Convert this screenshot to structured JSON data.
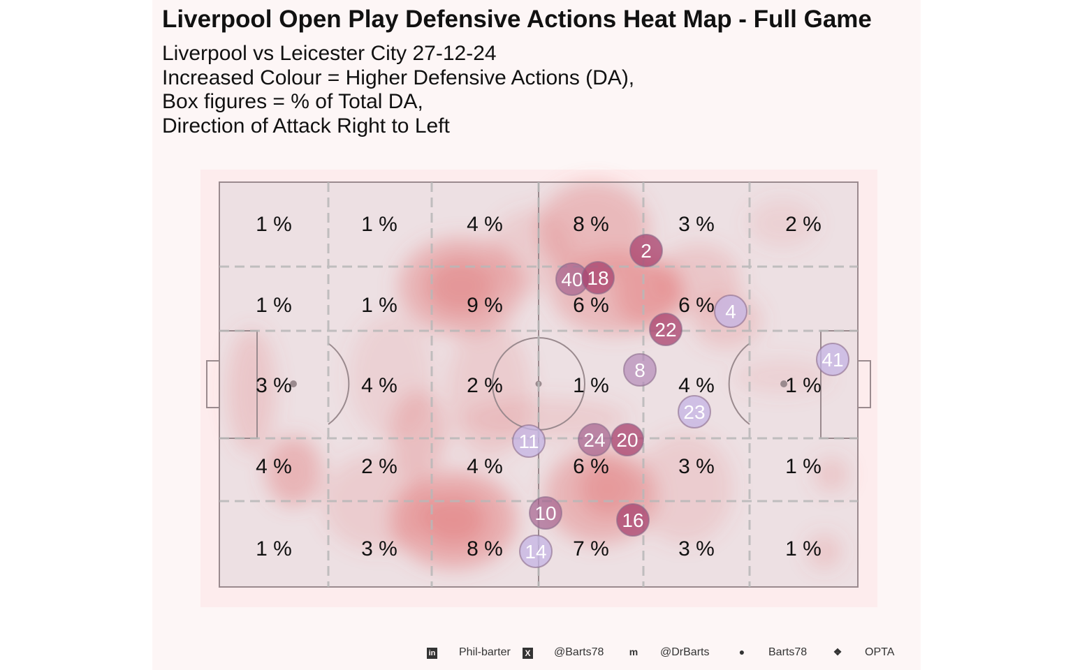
{
  "chart_data": {
    "type": "heatmap",
    "title": "Liverpool Open Play Defensive Actions Heat Map - Full Game",
    "subtitle_lines": [
      "Liverpool vs Leicester City 27-12-24",
      "Increased Colour = Higher Defensive Actions (DA),",
      "Box figures = % of Total DA,",
      "Direction of Attack Right to Left"
    ],
    "grid_rows": 5,
    "grid_cols": 6,
    "box_labels": [
      [
        "1 %",
        "1 %",
        "4 %",
        "8 %",
        "3 %",
        "2 %"
      ],
      [
        "1 %",
        "1 %",
        "9 %",
        "6 %",
        "6 %",
        ""
      ],
      [
        "3 %",
        "4 %",
        "2 %",
        "1 %",
        "4 %",
        "1 %"
      ],
      [
        "4 %",
        "2 %",
        "4 %",
        "6 %",
        "3 %",
        "1 %"
      ],
      [
        "1 %",
        "3 %",
        "8 %",
        "7 %",
        "3 %",
        "1 %"
      ]
    ],
    "players": [
      {
        "number": "2",
        "level": "high"
      },
      {
        "number": "40",
        "level": "mid"
      },
      {
        "number": "18",
        "level": "high"
      },
      {
        "number": "4",
        "level": "low"
      },
      {
        "number": "22",
        "level": "high"
      },
      {
        "number": "8",
        "level": "midlow"
      },
      {
        "number": "41",
        "level": "low"
      },
      {
        "number": "23",
        "level": "low"
      },
      {
        "number": "11",
        "level": "low"
      },
      {
        "number": "24",
        "level": "mid"
      },
      {
        "number": "20",
        "level": "high"
      },
      {
        "number": "10",
        "level": "mid"
      },
      {
        "number": "16",
        "level": "high"
      },
      {
        "number": "14",
        "level": "low"
      }
    ],
    "colors": {
      "heat": "#e06060",
      "player_high": "#a8426e",
      "player_low": "#c4b4e4",
      "pitch_line": "#9a8a8e",
      "grid_line": "#b8b8b8"
    }
  },
  "caption": {
    "linkedin": "Phil-barter",
    "x": "@Barts78",
    "mastodon": "@DrBarts",
    "github": "Barts78",
    "source": "OPTA"
  }
}
